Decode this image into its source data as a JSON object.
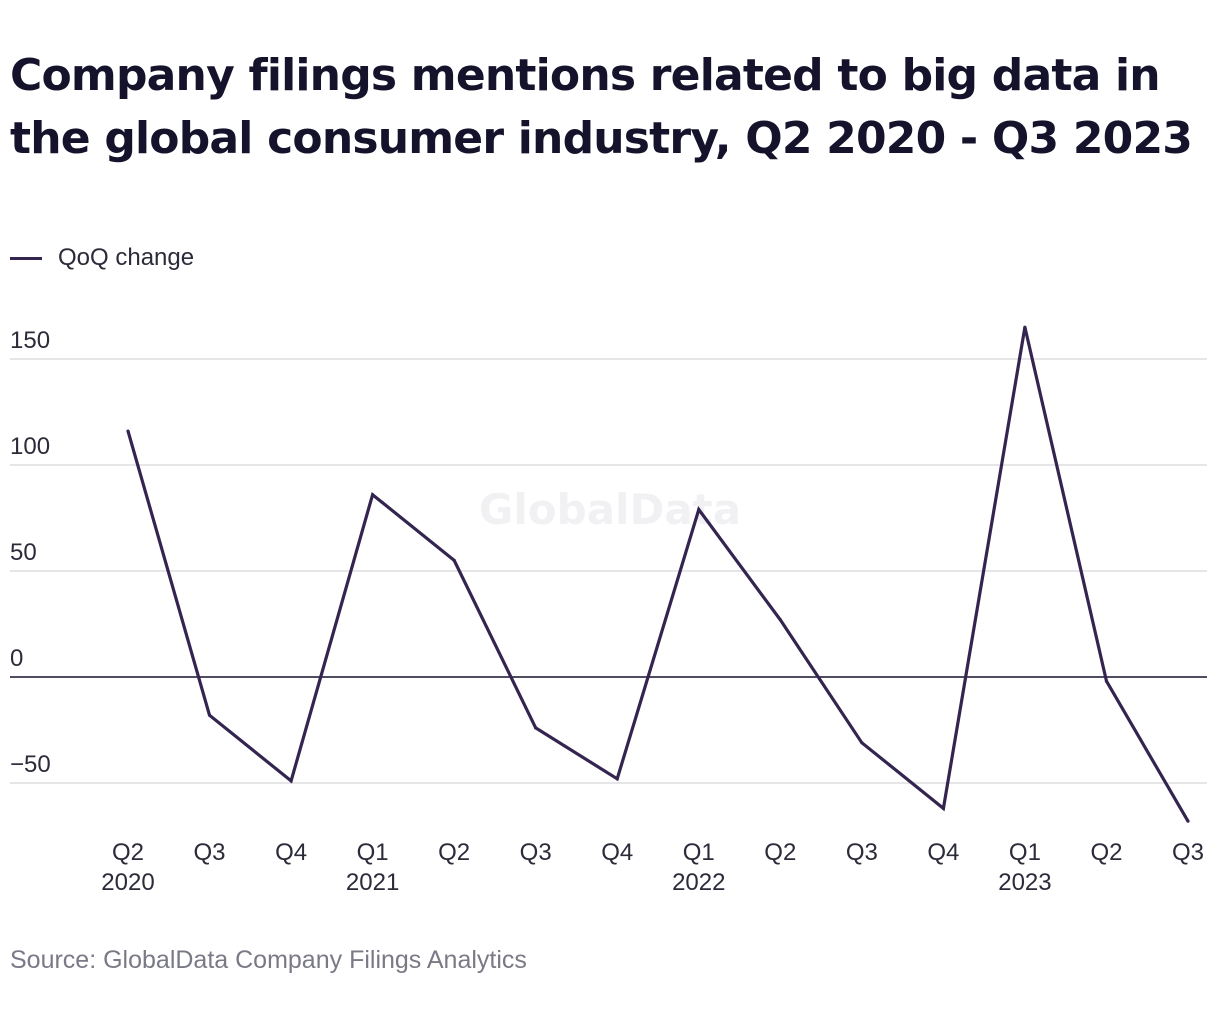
{
  "title": "Company filings mentions related to big data in the global consumer industry, Q2 2020 - Q3 2023",
  "legend": {
    "label": "QoQ change"
  },
  "source": "Source: GlobalData Company Filings Analytics",
  "watermark": "GlobalData",
  "colors": {
    "line": "#33254f",
    "grid": "#d6d6dc",
    "zero_line": "#15132b",
    "text": "#2b2b3a",
    "watermark": "#f1f1f4"
  },
  "chart_data": {
    "type": "line",
    "title": "Company filings mentions related to big data in the global consumer industry, Q2 2020 - Q3 2023",
    "xlabel": "",
    "ylabel": "",
    "categories": [
      {
        "q": "Q2",
        "year": "2020"
      },
      {
        "q": "Q3",
        "year": ""
      },
      {
        "q": "Q4",
        "year": ""
      },
      {
        "q": "Q1",
        "year": "2021"
      },
      {
        "q": "Q2",
        "year": ""
      },
      {
        "q": "Q3",
        "year": ""
      },
      {
        "q": "Q4",
        "year": ""
      },
      {
        "q": "Q1",
        "year": "2022"
      },
      {
        "q": "Q2",
        "year": ""
      },
      {
        "q": "Q3",
        "year": ""
      },
      {
        "q": "Q4",
        "year": ""
      },
      {
        "q": "Q1",
        "year": "2023"
      },
      {
        "q": "Q2",
        "year": ""
      },
      {
        "q": "Q3",
        "year": ""
      }
    ],
    "series": [
      {
        "name": "QoQ change",
        "values": [
          116,
          -18,
          -49,
          86,
          55,
          -24,
          -48,
          79,
          27,
          -31,
          -62,
          165,
          -2,
          -68
        ]
      }
    ],
    "yticks": [
      150,
      100,
      50,
      0,
      -50
    ],
    "ytick_labels": [
      "150",
      "100",
      "50",
      "0",
      "−50"
    ],
    "ylim": [
      -68,
      165
    ],
    "grid": true,
    "legend_position": "top-left"
  }
}
